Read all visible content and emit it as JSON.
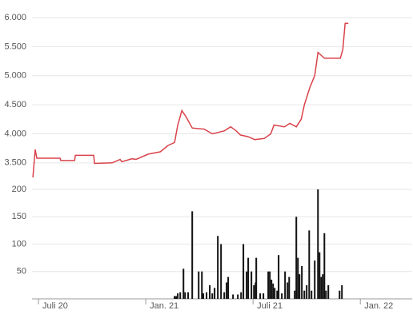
{
  "chart_data": [
    {
      "type": "line",
      "color": "#d9434b",
      "grid": true,
      "xlim": [
        -0.36,
        20.9
      ],
      "ylim": [
        3250,
        6110
      ],
      "yticks": [
        {
          "value": 3500,
          "label": "3.500"
        },
        {
          "value": 4000,
          "label": "4.000"
        },
        {
          "value": 4500,
          "label": "4.500"
        },
        {
          "value": 5000,
          "label": "5.000"
        },
        {
          "value": 5500,
          "label": "5.500"
        },
        {
          "value": 6000,
          "label": "6.000"
        }
      ],
      "x": [
        -0.31,
        -0.18,
        -0.09,
        1.21,
        1.25,
        2.02,
        2.06,
        3.09,
        3.13,
        4.12,
        4.57,
        4.66,
        5.24,
        5.46,
        6.14,
        6.81,
        7.25,
        7.61,
        7.79,
        8.02,
        8.24,
        8.6,
        9.27,
        9.72,
        10.39,
        10.75,
        11.06,
        11.29,
        11.73,
        12.09,
        12.63,
        12.99,
        13.17,
        13.75,
        14.06,
        14.42,
        14.69,
        14.87,
        15.18,
        15.45,
        15.63,
        15.99,
        16.88,
        17.02,
        17.15,
        17.33
      ],
      "values": [
        3250,
        3730,
        3580,
        3580,
        3540,
        3540,
        3630,
        3630,
        3490,
        3500,
        3560,
        3520,
        3570,
        3560,
        3650,
        3690,
        3800,
        3850,
        4150,
        4400,
        4300,
        4100,
        4080,
        4000,
        4050,
        4120,
        4050,
        3980,
        3950,
        3900,
        3920,
        4000,
        4150,
        4120,
        4180,
        4120,
        4250,
        4500,
        4800,
        5000,
        5400,
        5300,
        5300,
        5450,
        5900,
        5900
      ]
    },
    {
      "type": "bar",
      "color": "#111111",
      "grid": true,
      "xlim": [
        -0.36,
        20.9
      ],
      "ylim": [
        0,
        205
      ],
      "yticks": [
        50,
        100,
        150,
        200
      ],
      "xticks": [
        {
          "value": 0,
          "label": "Juli 20"
        },
        {
          "value": 6,
          "label": "Jan. 21"
        },
        {
          "value": 12,
          "label": "Juli 21"
        },
        {
          "value": 18,
          "label": "Jan. 22"
        }
      ],
      "x": [
        7.61,
        7.7,
        7.79,
        7.93,
        8.11,
        8.2,
        8.37,
        8.6,
        8.96,
        9.14,
        9.22,
        9.4,
        9.58,
        9.72,
        9.85,
        10.03,
        10.21,
        10.39,
        10.52,
        10.61,
        10.88,
        11.15,
        11.33,
        11.46,
        11.64,
        11.73,
        11.91,
        12.05,
        12.14,
        12.18,
        12.4,
        12.58,
        12.85,
        12.94,
        13.03,
        13.12,
        13.21,
        13.35,
        13.43,
        13.61,
        13.79,
        13.93,
        14.02,
        14.33,
        14.42,
        14.51,
        14.6,
        14.73,
        14.87,
        15.0,
        15.14,
        15.27,
        15.45,
        15.63,
        15.72,
        15.81,
        15.9,
        15.99,
        16.08,
        16.21,
        16.84,
        16.97
      ],
      "values": [
        5,
        5,
        10,
        12,
        55,
        12,
        12,
        160,
        50,
        50,
        10,
        12,
        25,
        10,
        20,
        115,
        100,
        12,
        30,
        40,
        8,
        8,
        12,
        100,
        50,
        75,
        50,
        25,
        30,
        75,
        10,
        10,
        50,
        50,
        35,
        28,
        20,
        15,
        80,
        10,
        50,
        30,
        40,
        15,
        150,
        75,
        45,
        60,
        15,
        25,
        125,
        15,
        70,
        200,
        85,
        40,
        45,
        120,
        15,
        25,
        15,
        25
      ]
    }
  ]
}
